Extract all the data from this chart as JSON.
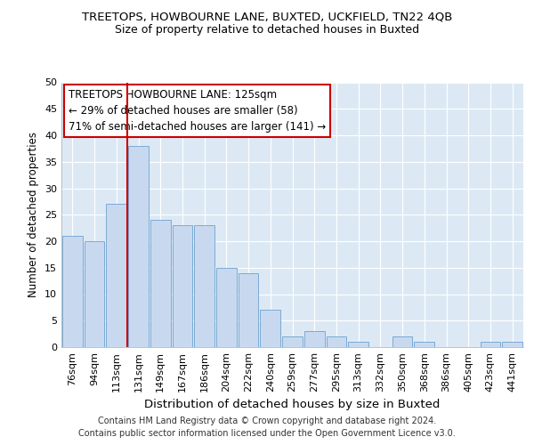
{
  "title": "TREETOPS, HOWBOURNE LANE, BUXTED, UCKFIELD, TN22 4QB",
  "subtitle": "Size of property relative to detached houses in Buxted",
  "xlabel": "Distribution of detached houses by size in Buxted",
  "ylabel": "Number of detached properties",
  "categories": [
    "76sqm",
    "94sqm",
    "113sqm",
    "131sqm",
    "149sqm",
    "167sqm",
    "186sqm",
    "204sqm",
    "222sqm",
    "240sqm",
    "259sqm",
    "277sqm",
    "295sqm",
    "313sqm",
    "332sqm",
    "350sqm",
    "368sqm",
    "386sqm",
    "405sqm",
    "423sqm",
    "441sqm"
  ],
  "values": [
    21,
    20,
    27,
    38,
    24,
    23,
    23,
    15,
    14,
    7,
    2,
    3,
    2,
    1,
    0,
    2,
    1,
    0,
    0,
    1,
    1
  ],
  "bar_color": "#c8d9ef",
  "bar_edge_color": "#7baad4",
  "bg_color": "#dce9f5",
  "grid_color": "#ffffff",
  "vline_color": "#cc0000",
  "vline_index": 3,
  "annotation_box_text": "TREETOPS HOWBOURNE LANE: 125sqm\n← 29% of detached houses are smaller (58)\n71% of semi-detached houses are larger (141) →",
  "annotation_box_color": "#cc0000",
  "ylim": [
    0,
    50
  ],
  "yticks": [
    0,
    5,
    10,
    15,
    20,
    25,
    30,
    35,
    40,
    45,
    50
  ],
  "footer": "Contains HM Land Registry data © Crown copyright and database right 2024.\nContains public sector information licensed under the Open Government Licence v3.0.",
  "title_fontsize": 9.5,
  "subtitle_fontsize": 9.0,
  "xlabel_fontsize": 9.5,
  "ylabel_fontsize": 8.5,
  "tick_fontsize": 8.0,
  "footer_fontsize": 7.0,
  "ann_fontsize": 8.5
}
